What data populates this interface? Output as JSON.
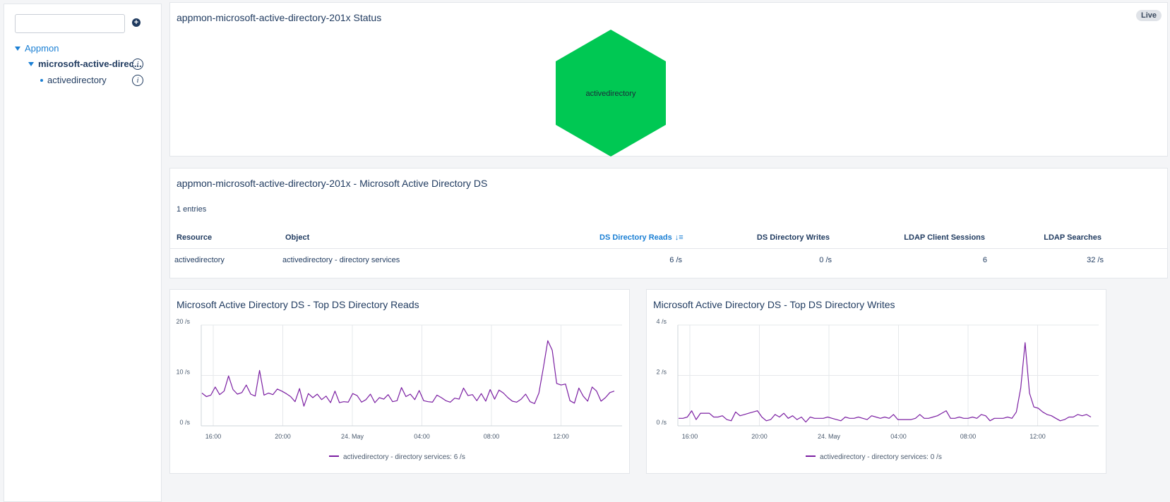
{
  "sidebar": {
    "search": {
      "value": "",
      "placeholder": ""
    },
    "add_icon": "plus-circle-icon",
    "tree": [
      {
        "label": "Appmon",
        "type": "group",
        "expanded": true
      },
      {
        "label": "microsoft-active-direc...",
        "type": "group",
        "expanded": true,
        "info": true
      },
      {
        "label": "activedirectory",
        "type": "leaf",
        "info": true
      }
    ]
  },
  "status_panel": {
    "title": "appmon-microsoft-active-directory-201x Status",
    "live_badge": "Live",
    "node_label": "activedirectory",
    "node_color": "#00c853"
  },
  "ds_table": {
    "title": "appmon-microsoft-active-directory-201x - Microsoft Active Directory DS",
    "entries": "1 entries",
    "columns": [
      "Resource",
      "Object",
      "DS Directory Reads",
      "DS Directory Writes",
      "LDAP Client Sessions",
      "LDAP Searches"
    ],
    "sorted_column": "DS Directory Reads",
    "rows": [
      [
        "activedirectory",
        "activedirectory - directory services",
        "6 /s",
        "0 /s",
        "6",
        "32 /s"
      ]
    ]
  },
  "colors": {
    "accent": "#1a7fd4",
    "series": "#7b1fa2",
    "text": "#1f3a5f"
  },
  "chart_data": [
    {
      "type": "line",
      "title": "Microsoft Active Directory DS - Top DS Directory Reads",
      "yticks": [
        "20 /s",
        "10 /s",
        "0 /s"
      ],
      "ylim": [
        0,
        20
      ],
      "xticks": [
        "16:00",
        "20:00",
        "24. May",
        "04:00",
        "08:00",
        "12:00"
      ],
      "series": [
        {
          "name": "activedirectory - directory services: 6 /s",
          "values": [
            6.5,
            5.8,
            6.1,
            7.7,
            6.2,
            6.9,
            9.9,
            7.2,
            6.3,
            6.6,
            8.1,
            6.3,
            5.9,
            11.0,
            6.1,
            6.5,
            6.2,
            7.3,
            6.9,
            6.4,
            5.8,
            4.8,
            7.4,
            3.9,
            6.4,
            5.6,
            6.3,
            5.2,
            5.9,
            4.6,
            6.9,
            4.6,
            4.8,
            4.7,
            6.4,
            6.0,
            4.7,
            5.2,
            6.3,
            4.6,
            5.6,
            5.3,
            6.2,
            4.8,
            5.0,
            7.6,
            5.8,
            6.3,
            5.2,
            7.0,
            5.0,
            4.8,
            4.7,
            6.1,
            5.6,
            5.0,
            4.7,
            5.5,
            5.3,
            7.5,
            6.0,
            6.2,
            5.0,
            6.4,
            4.9,
            7.2,
            5.3,
            7.1,
            6.5,
            5.6,
            4.9,
            4.7,
            5.3,
            6.3,
            4.8,
            4.4,
            6.5,
            11.5,
            16.9,
            15.0,
            8.4,
            8.1,
            8.3,
            5.0,
            4.5,
            7.5,
            5.9,
            4.9,
            7.7,
            6.9,
            4.9,
            5.6,
            6.6,
            6.9
          ]
        }
      ]
    },
    {
      "type": "line",
      "title": "Microsoft Active Directory DS - Top DS Directory Writes",
      "yticks": [
        "4 /s",
        "2 /s",
        "0 /s"
      ],
      "ylim": [
        0,
        4
      ],
      "xticks": [
        "16:00",
        "20:00",
        "24. May",
        "04:00",
        "08:00",
        "12:00"
      ],
      "series": [
        {
          "name": "activedirectory - directory services: 0 /s",
          "values": [
            0.3,
            0.3,
            0.35,
            0.6,
            0.25,
            0.5,
            0.5,
            0.5,
            0.35,
            0.35,
            0.4,
            0.25,
            0.2,
            0.55,
            0.4,
            0.45,
            0.5,
            0.55,
            0.6,
            0.35,
            0.2,
            0.25,
            0.45,
            0.35,
            0.5,
            0.3,
            0.4,
            0.25,
            0.35,
            0.15,
            0.35,
            0.3,
            0.3,
            0.3,
            0.35,
            0.3,
            0.25,
            0.2,
            0.35,
            0.3,
            0.3,
            0.35,
            0.3,
            0.25,
            0.4,
            0.35,
            0.3,
            0.35,
            0.3,
            0.45,
            0.25,
            0.25,
            0.25,
            0.25,
            0.3,
            0.45,
            0.3,
            0.3,
            0.35,
            0.4,
            0.5,
            0.6,
            0.3,
            0.3,
            0.35,
            0.3,
            0.3,
            0.35,
            0.3,
            0.45,
            0.4,
            0.2,
            0.3,
            0.3,
            0.3,
            0.35,
            0.3,
            0.55,
            1.5,
            3.3,
            1.3,
            0.75,
            0.7,
            0.55,
            0.45,
            0.4,
            0.3,
            0.2,
            0.25,
            0.35,
            0.35,
            0.45,
            0.4,
            0.45,
            0.35
          ]
        }
      ]
    }
  ]
}
